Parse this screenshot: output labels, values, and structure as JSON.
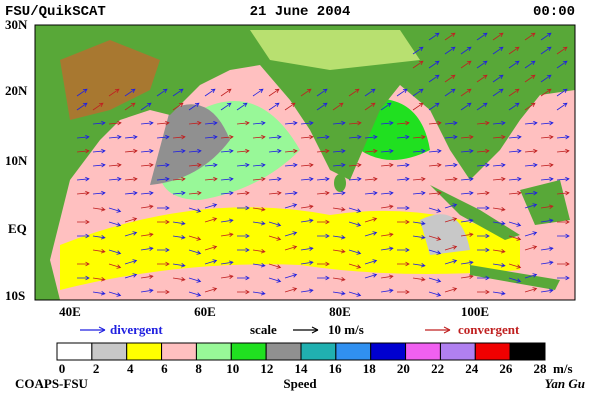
{
  "header": {
    "title": "FSU/QuikSCAT",
    "date": "21 June 2004",
    "time": "00:00"
  },
  "map": {
    "lat_labels": [
      "30N",
      "20N",
      "10N",
      "EQ",
      "10S"
    ],
    "lon_labels": [
      "40E",
      "60E",
      "80E",
      "100E"
    ]
  },
  "legend": {
    "divergent": "divergent",
    "scale": "scale",
    "scale_value": "10 m/s",
    "convergent": "convergent",
    "divergent_color": "#2020e0",
    "convergent_color": "#c02020"
  },
  "colorbar": {
    "ticks": [
      0,
      2,
      4,
      6,
      8,
      10,
      12,
      14,
      16,
      18,
      20,
      22,
      24,
      26,
      28
    ],
    "unit": "m/s",
    "label": "Speed",
    "colors": [
      "#ffffff",
      "#c8c8c8",
      "#ffff00",
      "#ffc0c0",
      "#98f898",
      "#20e020",
      "#909090",
      "#20b0b0",
      "#3090f0",
      "#0000d0",
      "#f060f0",
      "#b080f0",
      "#f00000",
      "#c04000",
      "#000000"
    ]
  },
  "footer": {
    "left": "COAPS-FSU",
    "right": "Yan Gu"
  }
}
